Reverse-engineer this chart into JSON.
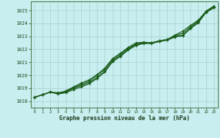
{
  "title": "Graphe pression niveau de la mer (hPa)",
  "bg_color": "#c8eef0",
  "grid_color": "#b0d8d8",
  "line_color": "#1a5c1a",
  "xlim": [
    -0.5,
    23.5
  ],
  "ylim": [
    1017.5,
    1025.7
  ],
  "yticks": [
    1018,
    1019,
    1020,
    1021,
    1022,
    1023,
    1024,
    1025
  ],
  "xticks": [
    0,
    1,
    2,
    3,
    4,
    5,
    6,
    7,
    8,
    9,
    10,
    11,
    12,
    13,
    14,
    15,
    16,
    17,
    18,
    19,
    20,
    21,
    22,
    23
  ],
  "line1": [
    1018.3,
    1018.5,
    1018.7,
    1018.6,
    1018.8,
    1019.1,
    1019.4,
    1019.65,
    1020.05,
    1020.55,
    1021.3,
    1021.7,
    1022.15,
    1022.5,
    1022.55,
    1022.5,
    1022.65,
    1022.75,
    1023.1,
    1023.4,
    1023.85,
    1024.25,
    1024.95,
    1025.35
  ],
  "line2": [
    1018.3,
    1018.5,
    1018.7,
    1018.6,
    1018.7,
    1019.0,
    1019.2,
    1019.45,
    1019.8,
    1020.3,
    1021.1,
    1021.5,
    1022.0,
    1022.35,
    1022.5,
    1022.5,
    1022.65,
    1022.75,
    1023.0,
    1023.1,
    1023.65,
    1024.1,
    1024.9,
    1025.25
  ],
  "line3": [
    1018.3,
    1018.5,
    1018.7,
    1018.65,
    1018.75,
    1019.05,
    1019.3,
    1019.55,
    1019.95,
    1020.45,
    1021.2,
    1021.6,
    1022.08,
    1022.42,
    1022.52,
    1022.5,
    1022.65,
    1022.75,
    1023.05,
    1023.25,
    1023.75,
    1024.18,
    1024.92,
    1025.3
  ],
  "line4": [
    1018.3,
    1018.5,
    1018.7,
    1018.55,
    1018.65,
    1018.9,
    1019.1,
    1019.35,
    1019.75,
    1020.25,
    1021.05,
    1021.45,
    1021.95,
    1022.3,
    1022.45,
    1022.45,
    1022.6,
    1022.7,
    1022.95,
    1023.05,
    1023.6,
    1024.05,
    1024.85,
    1025.2
  ]
}
